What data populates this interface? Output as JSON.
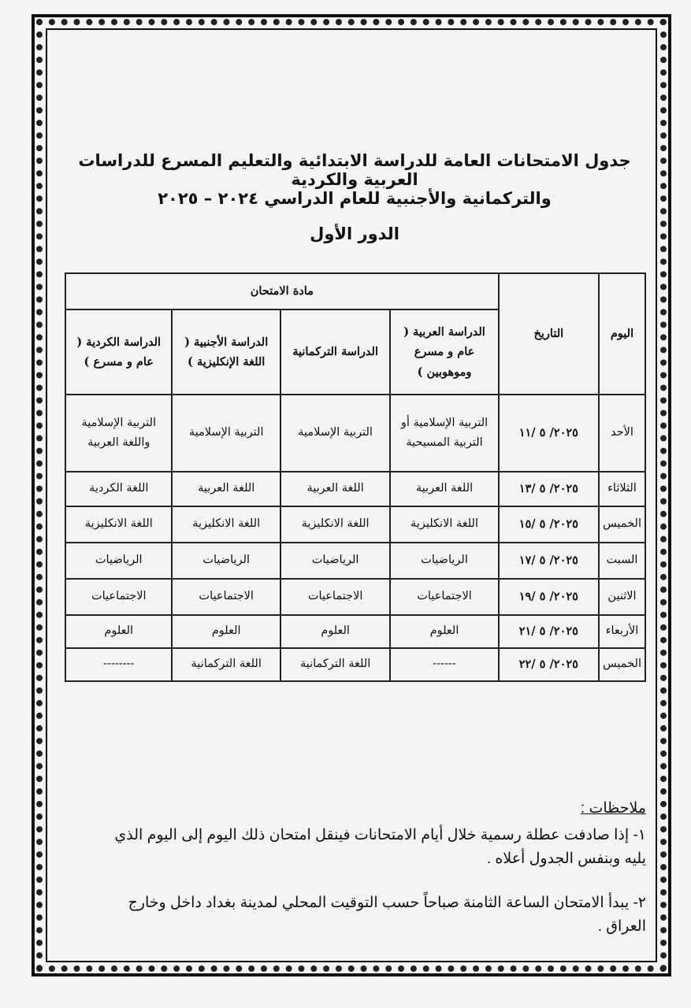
{
  "title": {
    "line1": "جدول الامتحانات العامة للدراسة الابتدائية والتعليم المسرع للدراسات العربية والكردية",
    "line2": "والتركمانية والأجنبية للعام الدراسي ٢٠٢٤ – ٢٠٢٥",
    "line3": "الدور الأول"
  },
  "table": {
    "headers": {
      "day": "اليوم",
      "date": "التاريخ",
      "subject_group": "مادة الامتحان",
      "arabic": "الدراسة العربية ( عام و مسرع وموهوبين )",
      "turkmen": "الدراسة التركمانية",
      "foreign": "الدراسة الأجنبية ( اللغة الإنكليزية )",
      "kurdish": "الدراسة الكردية ( عام و مسرع )"
    },
    "rows": [
      {
        "day": "الأحد",
        "date": "٢٠٢٥/ ٥ /١١",
        "arabic": "التربية الإسلامية أو التربية المسيحية",
        "turkmen": "التربية الإسلامية",
        "foreign": "التربية الإسلامية",
        "kurdish": "التربية الإسلامية واللغة العربية"
      },
      {
        "day": "الثلاثاء",
        "date": "٢٠٢٥/ ٥ /١٣",
        "arabic": "اللغة العربية",
        "turkmen": "اللغة العربية",
        "foreign": "اللغة العربية",
        "kurdish": "اللغة الكردية"
      },
      {
        "day": "الخميس",
        "date": "٢٠٢٥/ ٥ /١٥",
        "arabic": "اللغة الانكليزية",
        "turkmen": "اللغة الانكليزية",
        "foreign": "اللغة الانكليزية",
        "kurdish": "اللغة الانكليزية"
      },
      {
        "day": "السبت",
        "date": "٢٠٢٥/ ٥ /١٧",
        "arabic": "الرياضيات",
        "turkmen": "الرياضيات",
        "foreign": "الرياضيات",
        "kurdish": "الرياضيات"
      },
      {
        "day": "الاثنين",
        "date": "٢٠٢٥/ ٥ /١٩",
        "arabic": "الاجتماعيات",
        "turkmen": "الاجتماعيات",
        "foreign": "الاجتماعيات",
        "kurdish": "الاجتماعيات"
      },
      {
        "day": "الأربعاء",
        "date": "٢٠٢٥/ ٥ /٢١",
        "arabic": "العلوم",
        "turkmen": "العلوم",
        "foreign": "العلوم",
        "kurdish": "العلوم"
      },
      {
        "day": "الخميس",
        "date": "٢٠٢٥/ ٥ /٢٢",
        "arabic": "------",
        "turkmen": "اللغة التركمانية",
        "foreign": "اللغة التركمانية",
        "kurdish": "--------"
      }
    ]
  },
  "notes": {
    "title": "ملاحظات :",
    "items": [
      "١- إذا صادفت عطلة رسمية خلال أيام الامتحانات فينقل امتحان ذلك اليوم إلى اليوم الذي يليه وبنفس الجدول أعلاه .",
      "٢- يبدأ الامتحان الساعة الثامنة صباحاً حسب التوقيت المحلي لمدينة بغداد داخل وخارج العراق ."
    ]
  }
}
